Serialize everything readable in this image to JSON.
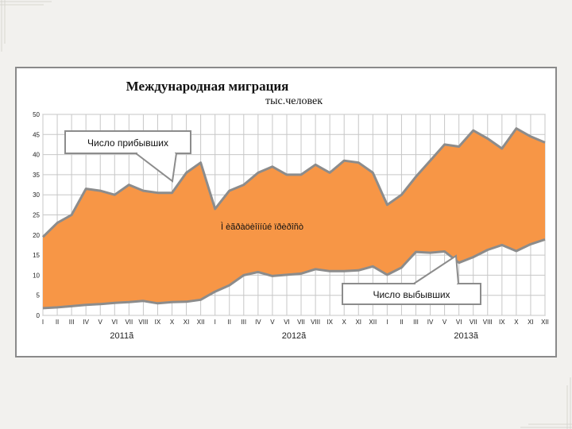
{
  "chart_data": {
    "type": "area",
    "title": "Международная миграция",
    "subtitle": "тыс.человек",
    "ylim": [
      0,
      50
    ],
    "y_ticks": [
      "0",
      "5",
      "10",
      "15",
      "20",
      "25",
      "30",
      "35",
      "40",
      "45",
      "50"
    ],
    "categories": [
      "I",
      "II",
      "III",
      "IV",
      "V",
      "VI",
      "VII",
      "VIII",
      "IX",
      "X",
      "XI",
      "XII",
      "I",
      "II",
      "III",
      "IV",
      "V",
      "VI",
      "VII",
      "VIII",
      "IX",
      "X",
      "XI",
      "XII",
      "I",
      "II",
      "III",
      "IV",
      "V",
      "VI",
      "VII",
      "VIII",
      "IX",
      "X",
      "XI",
      "XII"
    ],
    "years": [
      "2011ã",
      "2012ã",
      "2013ã"
    ],
    "series": [
      {
        "name": "Число прибывших",
        "values": [
          19.5,
          23,
          25,
          31.5,
          31,
          30,
          32.5,
          31,
          30.5,
          30.5,
          35.5,
          38,
          26.5,
          31,
          32.5,
          35.5,
          37,
          35,
          35,
          37.5,
          35.5,
          38.5,
          38,
          35.5,
          27.5,
          30,
          34.5,
          38.5,
          42.5,
          42,
          46,
          44,
          41.5,
          46.5,
          44.5,
          43
        ]
      },
      {
        "name": "Число выбывших",
        "values": [
          1.8,
          2,
          2.3,
          2.6,
          2.8,
          3.1,
          3.3,
          3.6,
          3,
          3.3,
          3.4,
          3.9,
          5.9,
          7.5,
          10,
          10.8,
          9.8,
          10.1,
          10.4,
          11.5,
          11,
          11,
          11.2,
          12.2,
          10.1,
          11.9,
          15.8,
          15.6,
          15.9,
          13.1,
          14.5,
          16.3,
          17.5,
          16,
          17.7,
          18.9
        ]
      }
    ],
    "area_label": "Ì èãðàöèîííûé ïðèðîñò",
    "grid": true,
    "colors": {
      "fill": "#f79646",
      "edge": "#8c8c8c",
      "grid": "#c7c7c7"
    }
  }
}
